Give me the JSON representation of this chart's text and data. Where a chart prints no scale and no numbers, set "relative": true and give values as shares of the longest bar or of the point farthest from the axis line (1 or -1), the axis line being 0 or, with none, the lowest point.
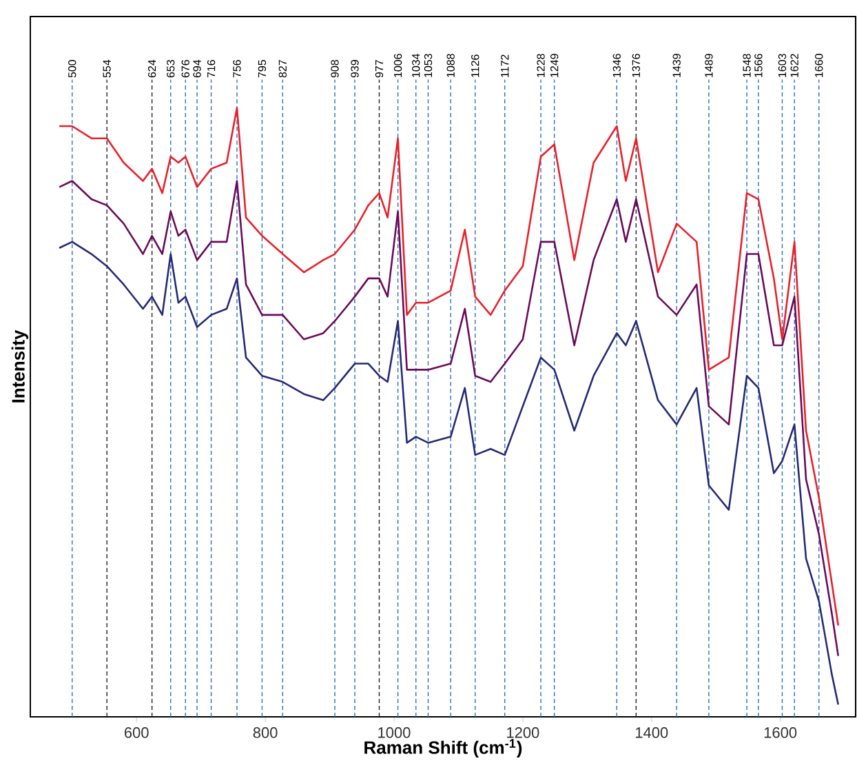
{
  "chart_data": {
    "type": "line",
    "relative": true,
    "xlabel": "Raman Shift (cm$^{-1}$)",
    "ylabel": "Intensity",
    "xlim": [
      435,
      1717
    ],
    "xticks": [
      600,
      800,
      1000,
      1200,
      1400,
      1600
    ],
    "x": [
      480,
      500,
      530,
      554,
      580,
      610,
      624,
      640,
      653,
      665,
      676,
      694,
      716,
      740,
      756,
      770,
      795,
      827,
      860,
      890,
      908,
      939,
      960,
      977,
      990,
      1006,
      1020,
      1034,
      1053,
      1088,
      1110,
      1126,
      1150,
      1172,
      1200,
      1228,
      1249,
      1280,
      1310,
      1346,
      1360,
      1376,
      1410,
      1439,
      1470,
      1489,
      1520,
      1548,
      1566,
      1590,
      1603,
      1622,
      1640,
      1660,
      1680,
      1690
    ],
    "series": [
      {
        "color": "#e8202a",
        "values": [
          0.97,
          0.97,
          0.95,
          0.95,
          0.91,
          0.88,
          0.9,
          0.86,
          0.92,
          0.91,
          0.92,
          0.87,
          0.9,
          0.91,
          1.0,
          0.82,
          0.79,
          0.76,
          0.73,
          0.75,
          0.76,
          0.8,
          0.84,
          0.86,
          0.82,
          0.95,
          0.66,
          0.68,
          0.68,
          0.7,
          0.8,
          0.69,
          0.66,
          0.7,
          0.74,
          0.92,
          0.94,
          0.75,
          0.91,
          0.97,
          0.88,
          0.95,
          0.73,
          0.81,
          0.78,
          0.57,
          0.59,
          0.86,
          0.85,
          0.72,
          0.62,
          0.78,
          0.47,
          0.36,
          0.22,
          0.15
        ]
      },
      {
        "color": "#6a0a5a",
        "values": [
          0.87,
          0.88,
          0.85,
          0.84,
          0.81,
          0.76,
          0.79,
          0.76,
          0.83,
          0.79,
          0.8,
          0.75,
          0.78,
          0.78,
          0.88,
          0.71,
          0.66,
          0.66,
          0.62,
          0.63,
          0.65,
          0.69,
          0.72,
          0.72,
          0.69,
          0.83,
          0.57,
          0.57,
          0.57,
          0.58,
          0.67,
          0.56,
          0.55,
          0.58,
          0.62,
          0.78,
          0.78,
          0.61,
          0.75,
          0.85,
          0.78,
          0.85,
          0.69,
          0.66,
          0.71,
          0.51,
          0.48,
          0.76,
          0.76,
          0.61,
          0.61,
          0.69,
          0.39,
          0.3,
          0.17,
          0.1
        ]
      },
      {
        "color": "#252a75",
        "values": [
          0.77,
          0.78,
          0.76,
          0.74,
          0.71,
          0.67,
          0.69,
          0.66,
          0.76,
          0.68,
          0.69,
          0.64,
          0.66,
          0.67,
          0.72,
          0.59,
          0.56,
          0.55,
          0.53,
          0.52,
          0.54,
          0.58,
          0.58,
          0.56,
          0.55,
          0.65,
          0.45,
          0.46,
          0.45,
          0.46,
          0.54,
          0.43,
          0.44,
          0.43,
          0.51,
          0.59,
          0.57,
          0.47,
          0.56,
          0.63,
          0.61,
          0.65,
          0.52,
          0.48,
          0.54,
          0.38,
          0.34,
          0.56,
          0.54,
          0.4,
          0.42,
          0.48,
          0.26,
          0.19,
          0.07,
          0.02
        ]
      }
    ],
    "ref_lines": [
      {
        "axis": "x",
        "value": 500,
        "label": "500",
        "color": "#2f6fc0",
        "line_style": "dashed"
      },
      {
        "axis": "x",
        "value": 554,
        "label": "554",
        "color": "#222222",
        "line_style": "dashed"
      },
      {
        "axis": "x",
        "value": 624,
        "label": "624",
        "color": "#222222",
        "line_style": "dashed"
      },
      {
        "axis": "x",
        "value": 653,
        "label": "653",
        "color": "#2f6fc0",
        "line_style": "dashed"
      },
      {
        "axis": "x",
        "value": 676,
        "label": "676",
        "color": "#2f6fc0",
        "line_style": "dashed"
      },
      {
        "axis": "x",
        "value": 694,
        "label": "694",
        "color": "#2f6fc0",
        "line_style": "dashed"
      },
      {
        "axis": "x",
        "value": 716,
        "label": "716",
        "color": "#2f6fc0",
        "line_style": "dashed"
      },
      {
        "axis": "x",
        "value": 756,
        "label": "756",
        "color": "#2f6fc0",
        "line_style": "dashed"
      },
      {
        "axis": "x",
        "value": 795,
        "label": "795",
        "color": "#2f6fc0",
        "line_style": "dashed"
      },
      {
        "axis": "x",
        "value": 827,
        "label": "827",
        "color": "#2f6fc0",
        "line_style": "dashed"
      },
      {
        "axis": "x",
        "value": 908,
        "label": "908",
        "color": "#2f6fc0",
        "line_style": "dashed"
      },
      {
        "axis": "x",
        "value": 939,
        "label": "939",
        "color": "#2f6fc0",
        "line_style": "dashed"
      },
      {
        "axis": "x",
        "value": 977,
        "label": "977",
        "color": "#222222",
        "line_style": "dashed"
      },
      {
        "axis": "x",
        "value": 1006,
        "label": "1006",
        "color": "#2f6fc0",
        "line_style": "dashed"
      },
      {
        "axis": "x",
        "value": 1034,
        "label": "1034",
        "color": "#2f6fc0",
        "line_style": "dashed"
      },
      {
        "axis": "x",
        "value": 1053,
        "label": "1053",
        "color": "#2f6fc0",
        "line_style": "dashed"
      },
      {
        "axis": "x",
        "value": 1088,
        "label": "1088",
        "color": "#2f6fc0",
        "line_style": "dashed"
      },
      {
        "axis": "x",
        "value": 1126,
        "label": "1126",
        "color": "#2f6fc0",
        "line_style": "dashed"
      },
      {
        "axis": "x",
        "value": 1172,
        "label": "1172",
        "color": "#2f6fc0",
        "line_style": "dashed"
      },
      {
        "axis": "x",
        "value": 1228,
        "label": "1228",
        "color": "#2f6fc0",
        "line_style": "dashed"
      },
      {
        "axis": "x",
        "value": 1249,
        "label": "1249",
        "color": "#2f6fc0",
        "line_style": "dashed"
      },
      {
        "axis": "x",
        "value": 1346,
        "label": "1346",
        "color": "#2f6fc0",
        "line_style": "dashed"
      },
      {
        "axis": "x",
        "value": 1376,
        "label": "1376",
        "color": "#222222",
        "line_style": "dashed"
      },
      {
        "axis": "x",
        "value": 1439,
        "label": "1439",
        "color": "#2f6fc0",
        "line_style": "dashed"
      },
      {
        "axis": "x",
        "value": 1489,
        "label": "1489",
        "color": "#2f6fc0",
        "line_style": "dashed"
      },
      {
        "axis": "x",
        "value": 1548,
        "label": "1548",
        "color": "#2f6fc0",
        "line_style": "dashed"
      },
      {
        "axis": "x",
        "value": 1566,
        "label": "1566",
        "color": "#2f6fc0",
        "line_style": "dashed"
      },
      {
        "axis": "x",
        "value": 1603,
        "label": "1603",
        "color": "#2f6fc0",
        "line_style": "dashed"
      },
      {
        "axis": "x",
        "value": 1622,
        "label": "1622",
        "color": "#2f6fc0",
        "line_style": "dashed"
      },
      {
        "axis": "x",
        "value": 1660,
        "label": "1660",
        "color": "#2f6fc0",
        "line_style": "dashed"
      }
    ]
  }
}
